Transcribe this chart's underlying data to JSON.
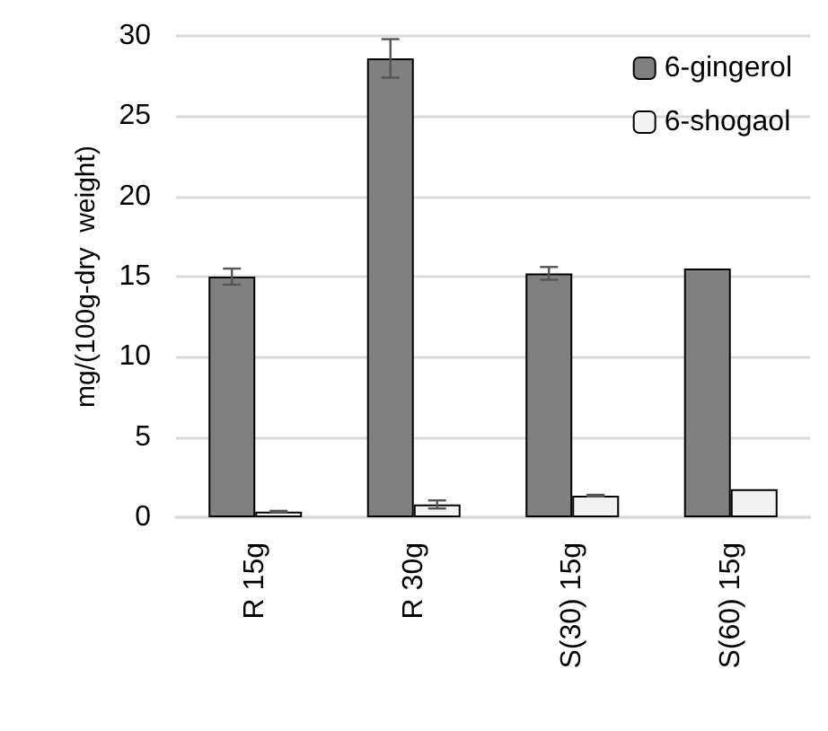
{
  "chart_data": {
    "type": "bar",
    "ylabel": "mg/(100g-dry  weight)",
    "categories": [
      "R 15g",
      "R 30g",
      "S(30) 15g",
      "S(60) 15g"
    ],
    "series": [
      {
        "name": "6-gingerol",
        "color": "#808080",
        "values": [
          15.0,
          28.6,
          15.2,
          15.5
        ],
        "errors": [
          0.5,
          1.2,
          0.4,
          null
        ]
      },
      {
        "name": "6-shogaol",
        "color": "#f2f2f2",
        "values": [
          0.35,
          0.8,
          1.35,
          1.75
        ],
        "errors": [
          0.05,
          0.25,
          0.05,
          null
        ]
      }
    ],
    "ylim": [
      0,
      30
    ],
    "yticks": [
      0,
      5,
      10,
      15,
      20,
      25,
      30
    ],
    "grid": "y",
    "legend": "top right"
  }
}
